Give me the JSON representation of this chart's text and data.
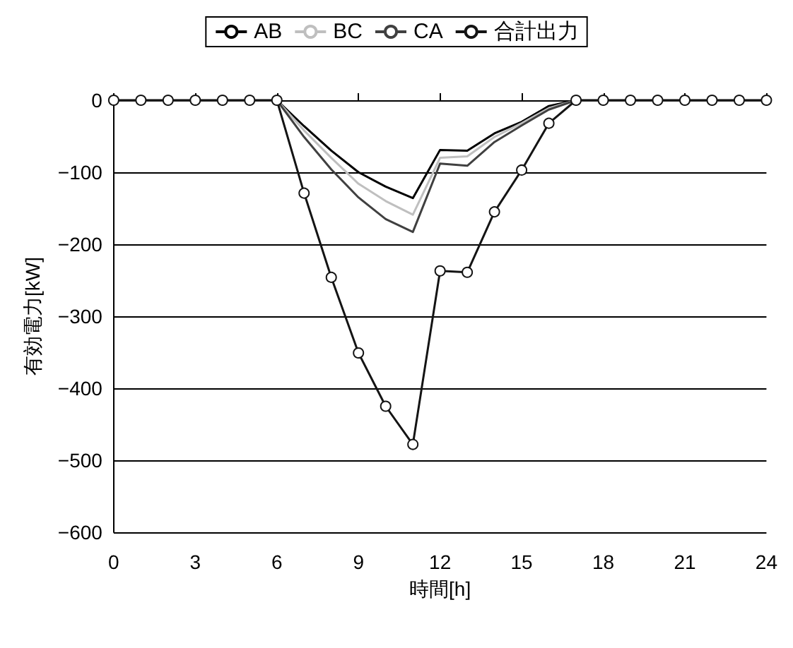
{
  "chart_data": {
    "type": "line",
    "ylabel": "有効電力[kW]",
    "xlabel": "時間[h]",
    "x": [
      0,
      1,
      2,
      3,
      4,
      5,
      6,
      7,
      8,
      9,
      10,
      11,
      12,
      13,
      14,
      15,
      16,
      17,
      18,
      19,
      20,
      21,
      22,
      23,
      24
    ],
    "series": [
      {
        "name": "AB",
        "color": "#000000",
        "marker": "none",
        "values": [
          0,
          0,
          0,
          0,
          0,
          0,
          0,
          -36,
          -70,
          -100,
          -120,
          -136,
          -69,
          -70,
          -46,
          -30,
          -8,
          0,
          0,
          0,
          0,
          0,
          0,
          0,
          0
        ]
      },
      {
        "name": "BC",
        "color": "#bfbfbf",
        "marker": "none",
        "values": [
          0,
          0,
          0,
          0,
          0,
          0,
          0,
          -42,
          -80,
          -116,
          -140,
          -159,
          -80,
          -78,
          -51,
          -32,
          -11,
          0,
          0,
          0,
          0,
          0,
          0,
          0,
          0
        ]
      },
      {
        "name": "CA",
        "color": "#404040",
        "marker": "none",
        "values": [
          0,
          0,
          0,
          0,
          0,
          0,
          0,
          -51,
          -96,
          -135,
          -165,
          -183,
          -88,
          -91,
          -58,
          -35,
          -13,
          0,
          0,
          0,
          0,
          0,
          0,
          0,
          0
        ]
      },
      {
        "name": "合計出力",
        "color": "#141414",
        "marker": "circle",
        "values": [
          0,
          0,
          0,
          0,
          0,
          0,
          0,
          -129,
          -246,
          -351,
          -425,
          -478,
          -237,
          -239,
          -155,
          -97,
          -32,
          0,
          0,
          0,
          0,
          0,
          0,
          0,
          0
        ]
      }
    ],
    "xlim": [
      0,
      24
    ],
    "xticks": [
      0,
      3,
      6,
      9,
      12,
      15,
      18,
      21,
      24
    ],
    "ylim": [
      -600,
      0
    ],
    "yticks": [
      {
        "value": -600,
        "label": "−600"
      },
      {
        "value": -500,
        "label": "−500"
      },
      {
        "value": -400,
        "label": "−400"
      },
      {
        "value": -300,
        "label": "−300"
      },
      {
        "value": -200,
        "label": "−200"
      },
      {
        "value": -100,
        "label": "−100"
      },
      0
    ],
    "grid": "y",
    "legend": "top",
    "line_style": "solid"
  }
}
